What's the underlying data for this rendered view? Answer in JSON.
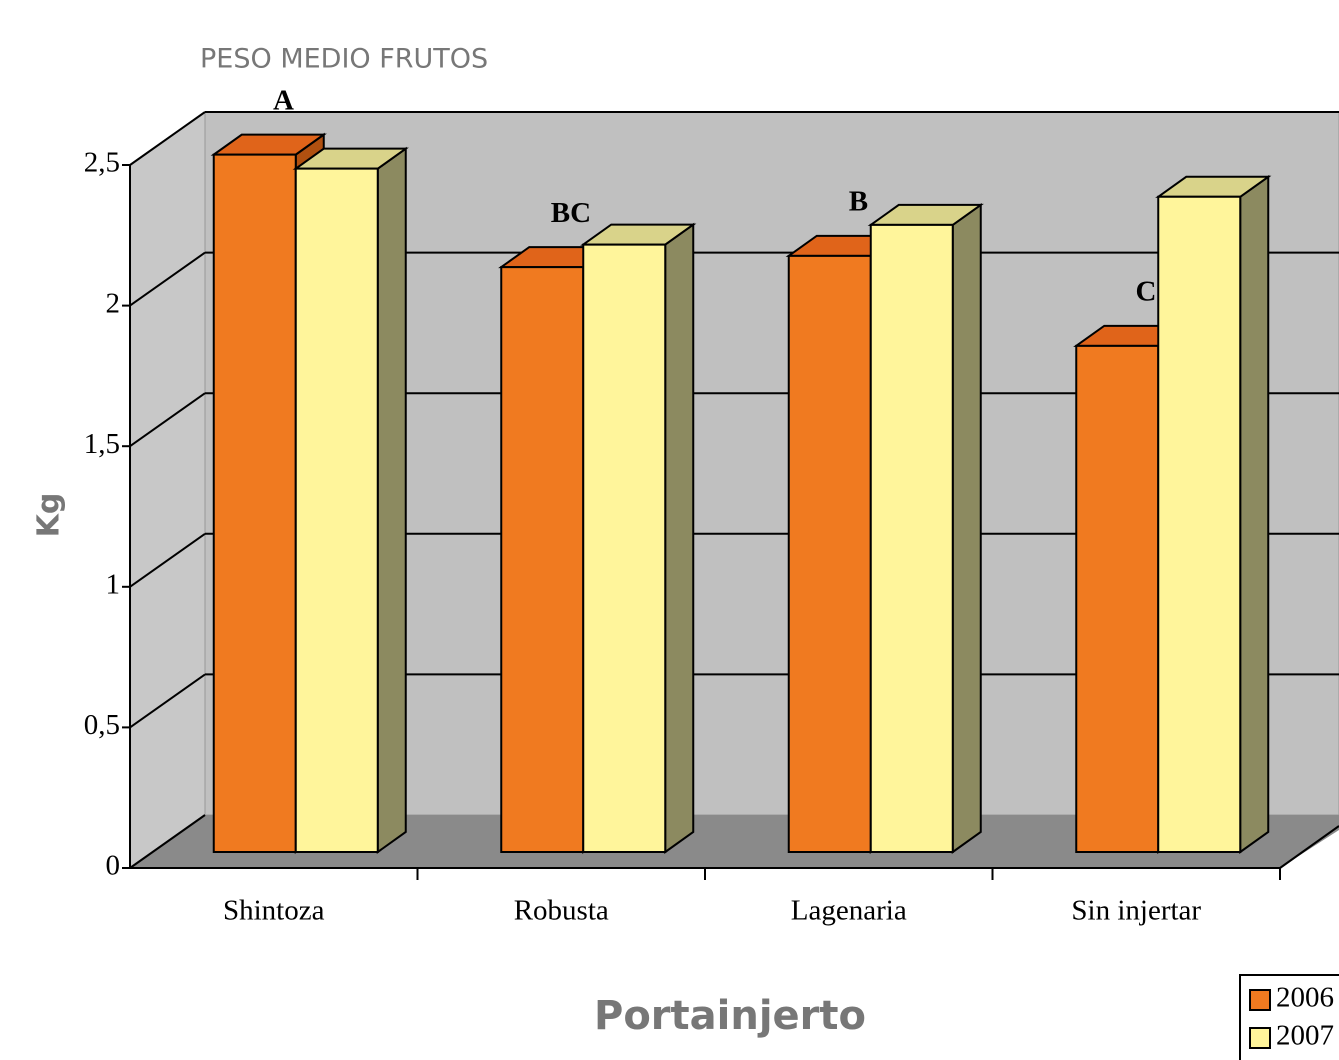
{
  "chart_data": {
    "type": "bar3d",
    "title": "PESO MEDIO FRUTOS",
    "x_label": "Portainjerto",
    "y_label": "Kg",
    "categories": [
      "Shintoza",
      "Robusta",
      "Lagenaria",
      "Sin injertar"
    ],
    "annotations": [
      "A",
      "BC",
      "B",
      "C"
    ],
    "series": [
      {
        "name": "2006",
        "color": "#f07a20",
        "values": [
          2.48,
          2.08,
          2.12,
          1.8
        ]
      },
      {
        "name": "2007",
        "color": "#fff59b",
        "values": [
          2.43,
          2.16,
          2.23,
          2.33
        ]
      }
    ],
    "ylim": [
      0,
      2.5
    ],
    "yticks": [
      0,
      {
        "value": 0.5,
        "label": "0,5"
      },
      1,
      {
        "value": 1.5,
        "label": "1,5"
      },
      2,
      {
        "value": 2.5,
        "label": "2,5"
      }
    ],
    "grid": true
  }
}
